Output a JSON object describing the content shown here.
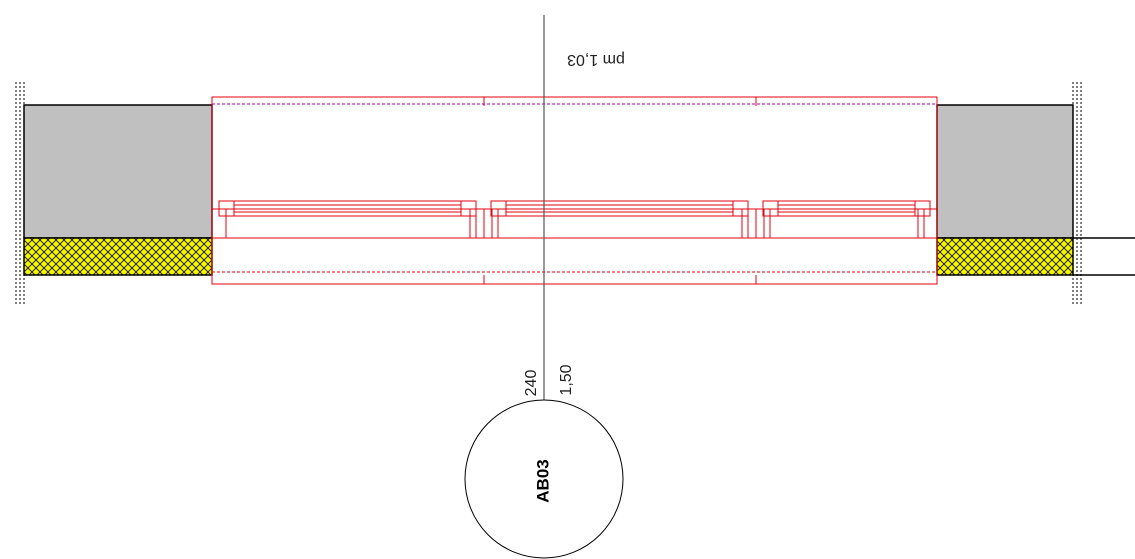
{
  "drawing": {
    "title_upside_down": "pm 1,03",
    "dim_left": "240",
    "dim_right": "1,50",
    "window_tag": "AB03"
  },
  "colors": {
    "window_lines": "#e3000f",
    "wall_fill": "#c0c0c0",
    "insulation_fill": "#f5f500",
    "hatch": "#000000",
    "reveal_dash": "#b000b0",
    "axis": "#555555"
  },
  "icons": {
    "wall_left": "grey-wall-block",
    "wall_right": "grey-wall-block",
    "insulation_left": "yellow-crosshatch-insulation",
    "insulation_right": "yellow-crosshatch-insulation",
    "window_tag": "circle-tag"
  }
}
